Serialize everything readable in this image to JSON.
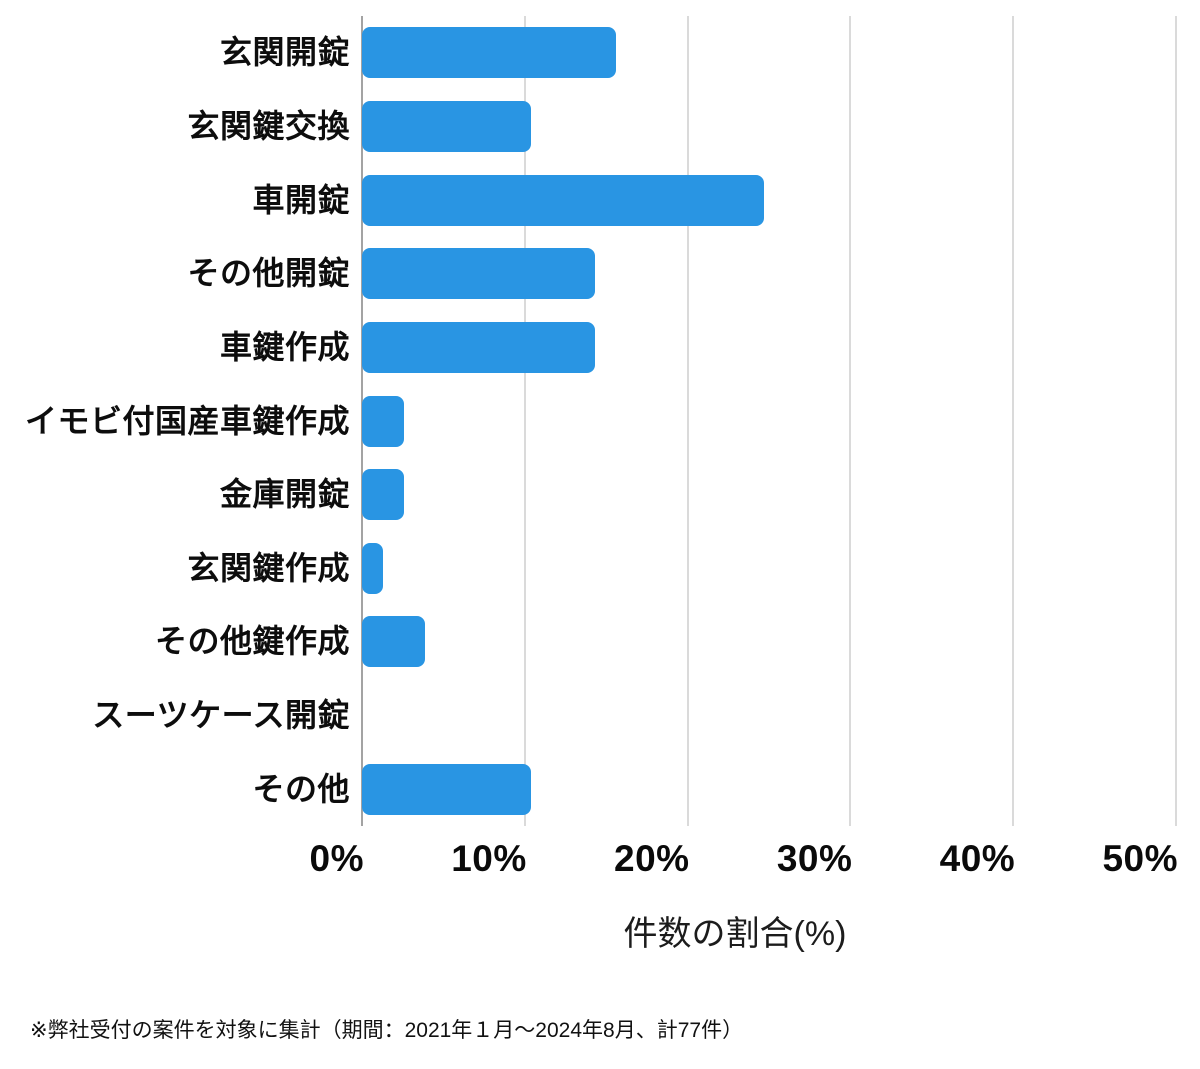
{
  "chart_data": {
    "type": "bar",
    "orientation": "horizontal",
    "title": "",
    "categories": [
      "玄関開錠",
      "玄関鍵交換",
      "車開錠",
      "その他開錠",
      "車鍵作成",
      "イモビ付国産車鍵作成",
      "金庫開錠",
      "玄関鍵作成",
      "その他鍵作成",
      "スーツケース開錠",
      "その他"
    ],
    "values": [
      15.58,
      10.39,
      24.68,
      14.29,
      14.29,
      2.6,
      2.6,
      1.3,
      3.9,
      0,
      10.39
    ],
    "unit": "%",
    "xlabel": "件数の割合(%)",
    "ylabel": "",
    "xlim": [
      0,
      50
    ],
    "xticks": [
      0,
      10,
      20,
      30,
      40,
      50
    ],
    "xtick_labels": [
      "0%",
      "10%",
      "20%",
      "30%",
      "40%",
      "50%"
    ],
    "grid": true,
    "legend": false,
    "bar_color": "#2995e3"
  },
  "footnote": "※弊社受付の案件を対象に集計（期間：2021年１月～2024年8月、計77件）",
  "colors": {
    "bar": "#2995e3",
    "gridline": "#dadada",
    "axis_line": "#a3a3a3",
    "text": "#111111",
    "background": "#ffffff"
  }
}
